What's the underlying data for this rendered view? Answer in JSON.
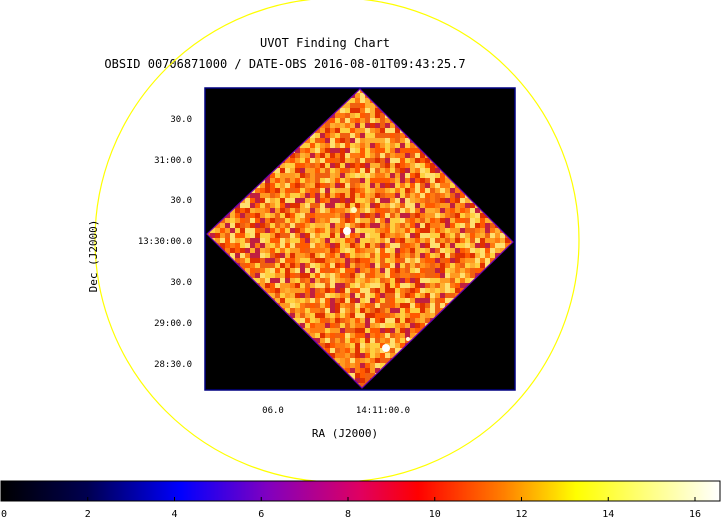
{
  "title": "UVOT Finding Chart",
  "subtitle": "OBSID 00706871000 / DATE-OBS 2016-08-01T09:43:25.7",
  "chart_data": {
    "type": "heatmap",
    "xlabel": "RA (J2000)",
    "ylabel": "Dec (J2000)",
    "x_ticks": [
      "06.0",
      "14:11:00.0"
    ],
    "y_ticks": [
      "30.0",
      "31:00.0",
      "30.0",
      "13:30:00.0",
      "30.0",
      "29:00.0",
      "28:30.0"
    ],
    "colorbar": {
      "min": 0,
      "max": 16,
      "ticks": [
        "0",
        "2",
        "4",
        "6",
        "8",
        "10",
        "12",
        "14",
        "16"
      ]
    },
    "colors": {
      "circle": "#ffff00",
      "frame": "#000080",
      "background": "#000000"
    }
  }
}
